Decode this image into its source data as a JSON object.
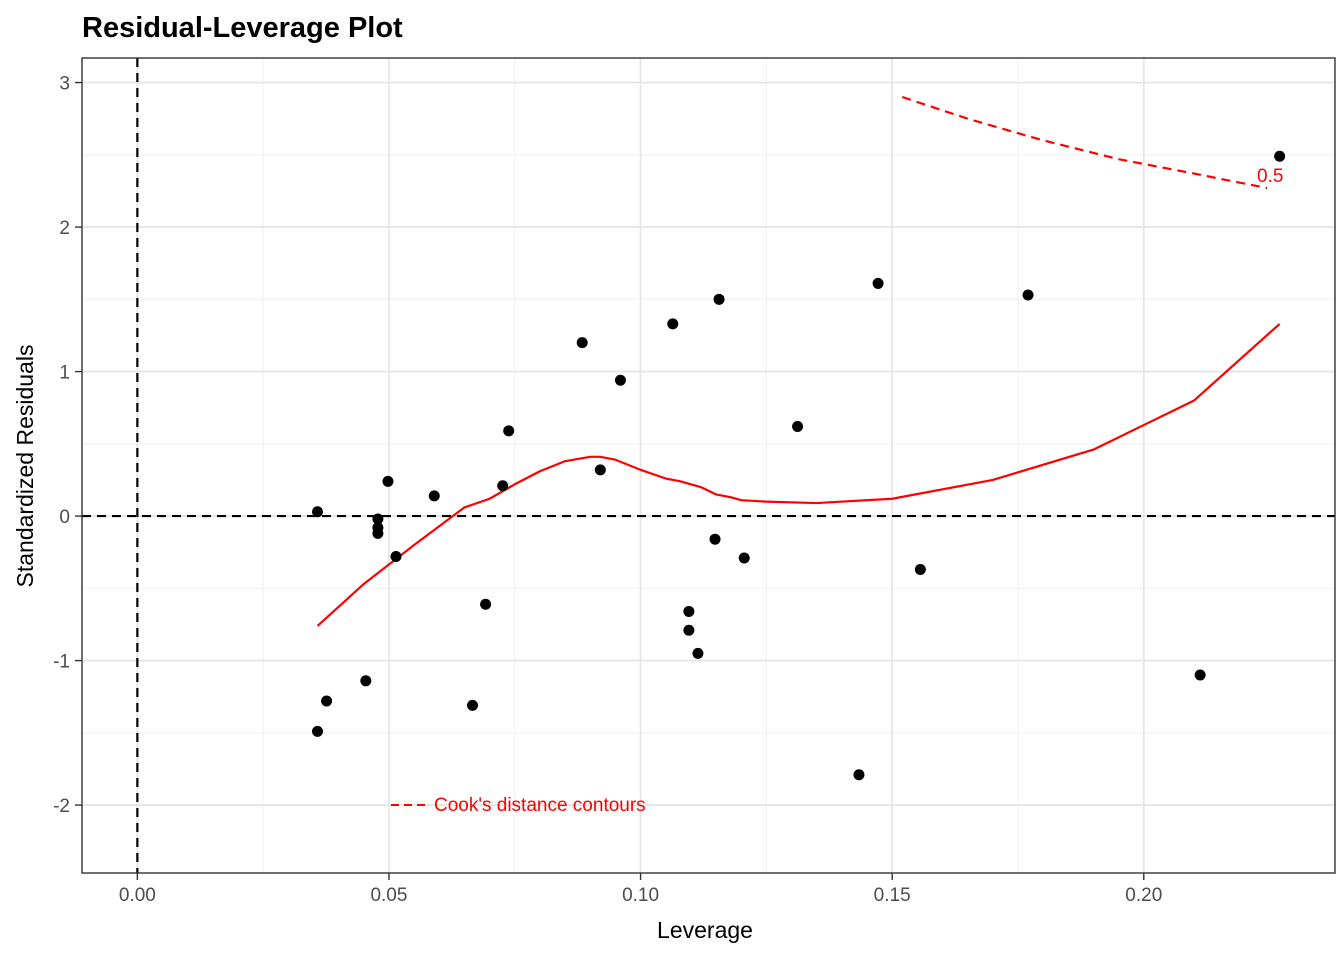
{
  "chart_data": {
    "type": "scatter",
    "title": "Residual-Leverage Plot",
    "xlabel": "Leverage",
    "ylabel": "Standardized Residuals",
    "xlim": [
      -0.011,
      0.238
    ],
    "ylim": [
      -2.47,
      3.17
    ],
    "x_ticks": [
      0.0,
      0.05,
      0.1,
      0.15,
      0.2
    ],
    "x_tick_labels": [
      "0.00",
      "0.05",
      "0.10",
      "0.15",
      "0.20"
    ],
    "y_ticks": [
      -2,
      -1,
      0,
      1,
      2,
      3
    ],
    "y_tick_labels": [
      "-2",
      "-1",
      "0",
      "1",
      "2",
      "3"
    ],
    "grid": true,
    "reference_lines": {
      "x": 0,
      "y": 0,
      "style": "dashed",
      "color": "#000000"
    },
    "point_color": "#000000",
    "points": [
      {
        "x": 0.0358,
        "y": 0.03
      },
      {
        "x": 0.0358,
        "y": -1.49
      },
      {
        "x": 0.0376,
        "y": -1.28
      },
      {
        "x": 0.0454,
        "y": -1.14
      },
      {
        "x": 0.0478,
        "y": -0.02
      },
      {
        "x": 0.0478,
        "y": -0.08
      },
      {
        "x": 0.0478,
        "y": -0.12
      },
      {
        "x": 0.0498,
        "y": 0.24
      },
      {
        "x": 0.0514,
        "y": -0.28
      },
      {
        "x": 0.059,
        "y": 0.14
      },
      {
        "x": 0.0666,
        "y": -1.31
      },
      {
        "x": 0.0692,
        "y": -0.61
      },
      {
        "x": 0.0726,
        "y": 0.21
      },
      {
        "x": 0.0738,
        "y": 0.59
      },
      {
        "x": 0.0884,
        "y": 1.2
      },
      {
        "x": 0.092,
        "y": 0.32
      },
      {
        "x": 0.096,
        "y": 0.94
      },
      {
        "x": 0.1064,
        "y": 1.33
      },
      {
        "x": 0.1096,
        "y": -0.66
      },
      {
        "x": 0.1096,
        "y": -0.79
      },
      {
        "x": 0.1114,
        "y": -0.95
      },
      {
        "x": 0.1148,
        "y": -0.16
      },
      {
        "x": 0.1156,
        "y": 1.5
      },
      {
        "x": 0.1206,
        "y": -0.29
      },
      {
        "x": 0.1312,
        "y": 0.62
      },
      {
        "x": 0.1434,
        "y": -1.79
      },
      {
        "x": 0.1472,
        "y": 1.61
      },
      {
        "x": 0.1556,
        "y": -0.37
      },
      {
        "x": 0.177,
        "y": 1.53
      },
      {
        "x": 0.2112,
        "y": -1.1
      },
      {
        "x": 0.227,
        "y": 2.49
      }
    ],
    "smooth_line": {
      "color": "#ff0000",
      "x": [
        0.0358,
        0.045,
        0.055,
        0.065,
        0.07,
        0.075,
        0.08,
        0.085,
        0.09,
        0.092,
        0.095,
        0.1,
        0.105,
        0.108,
        0.112,
        0.115,
        0.118,
        0.12,
        0.125,
        0.135,
        0.15,
        0.17,
        0.19,
        0.21,
        0.227
      ],
      "y": [
        -0.76,
        -0.47,
        -0.2,
        0.06,
        0.12,
        0.22,
        0.31,
        0.38,
        0.41,
        0.41,
        0.39,
        0.32,
        0.26,
        0.24,
        0.2,
        0.15,
        0.13,
        0.11,
        0.1,
        0.09,
        0.12,
        0.25,
        0.46,
        0.8,
        1.33
      ]
    },
    "cooks_contour": {
      "level_label": "0.5",
      "color": "#ff0000",
      "style": "dashed",
      "x": [
        0.152,
        0.165,
        0.18,
        0.195,
        0.21,
        0.2245
      ],
      "y": [
        2.9,
        2.75,
        2.6,
        2.47,
        2.37,
        2.27
      ]
    },
    "annotation": {
      "text": "Cook's distance contours",
      "at": {
        "x": 0.051,
        "y": -2.0
      }
    }
  }
}
